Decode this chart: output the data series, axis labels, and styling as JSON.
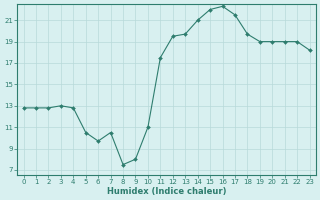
{
  "x": [
    0,
    1,
    2,
    3,
    4,
    5,
    6,
    7,
    8,
    9,
    10,
    11,
    12,
    13,
    14,
    15,
    16,
    17,
    18,
    19,
    20,
    21,
    22,
    23
  ],
  "y": [
    12.8,
    12.8,
    12.8,
    13.0,
    12.8,
    10.5,
    9.7,
    10.5,
    7.5,
    8.0,
    11.0,
    17.5,
    19.5,
    19.7,
    21.0,
    22.0,
    22.3,
    21.5,
    19.7,
    19.0,
    19.0,
    19.0,
    19.0,
    18.2
  ],
  "xlabel": "Humidex (Indice chaleur)",
  "line_color": "#2e7d6e",
  "marker": "D",
  "marker_size": 2.0,
  "bg_color": "#d8f0f0",
  "grid_color": "#b8dada",
  "axis_color": "#2e7d6e",
  "tick_color": "#2e7d6e",
  "xlim": [
    -0.5,
    23.5
  ],
  "ylim": [
    6.5,
    22.5
  ],
  "yticks": [
    7,
    9,
    11,
    13,
    15,
    17,
    19,
    21
  ],
  "xticks": [
    0,
    1,
    2,
    3,
    4,
    5,
    6,
    7,
    8,
    9,
    10,
    11,
    12,
    13,
    14,
    15,
    16,
    17,
    18,
    19,
    20,
    21,
    22,
    23
  ],
  "tick_fontsize": 5.0,
  "xlabel_fontsize": 6.0,
  "linewidth": 0.8
}
